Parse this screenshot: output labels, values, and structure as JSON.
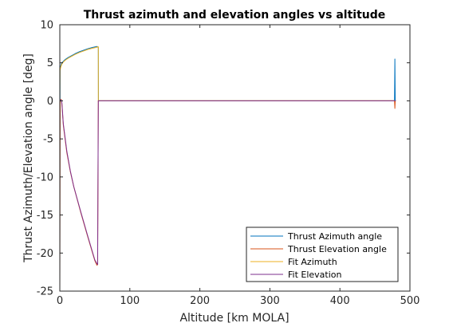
{
  "chart_data": {
    "type": "line",
    "title": "Thrust azimuth and elevation angles vs altitude",
    "xlabel": "Altitude [km MOLA]",
    "ylabel": "Thrust Azimuth/Elevation angle [deg]",
    "xlim": [
      0,
      500
    ],
    "ylim": [
      -25,
      10
    ],
    "xticks": [
      0,
      100,
      200,
      300,
      400,
      500
    ],
    "yticks": [
      -25,
      -20,
      -15,
      -10,
      -5,
      0,
      5,
      10
    ],
    "grid": false,
    "legend_position": "bottom-right",
    "series": [
      {
        "name": "Thrust Azimuth angle",
        "color": "#0072BD",
        "x": [
          0,
          0.3,
          1,
          2,
          3,
          5,
          8,
          12,
          17,
          22,
          28,
          34,
          40,
          46,
          51,
          53,
          54,
          55,
          55.2,
          100,
          200,
          300,
          400,
          478,
          478.5,
          479,
          479.5
        ],
        "y": [
          -25,
          4.2,
          4.5,
          4.8,
          5.0,
          5.2,
          5.45,
          5.7,
          5.95,
          6.2,
          6.45,
          6.65,
          6.85,
          7.0,
          7.1,
          7.15,
          7.1,
          7.0,
          0,
          0,
          0,
          0,
          0,
          0,
          5.5,
          0,
          0
        ]
      },
      {
        "name": "Thrust Elevation angle",
        "color": "#D95319",
        "x": [
          0,
          0.5,
          1,
          2,
          3,
          5,
          10,
          15,
          20,
          30,
          40,
          50,
          53,
          54,
          55,
          55.2,
          100,
          200,
          300,
          400,
          478,
          478.5,
          479
        ],
        "y": [
          -25,
          0.1,
          0.1,
          0.2,
          -0.5,
          -3.2,
          -6.8,
          -9.3,
          -11.3,
          -14.7,
          -17.9,
          -21.0,
          -21.6,
          -21.5,
          0,
          0,
          0,
          0,
          0,
          0,
          0,
          -1.0,
          0
        ]
      },
      {
        "name": "Fit Azimuth",
        "color": "#EDB120",
        "x": [
          0,
          0.3,
          1,
          2,
          3,
          5,
          8,
          12,
          17,
          22,
          28,
          34,
          40,
          46,
          51,
          53,
          54,
          55,
          55,
          100,
          200,
          300,
          400,
          480
        ],
        "y": [
          0,
          4.0,
          4.3,
          4.6,
          4.85,
          5.1,
          5.35,
          5.6,
          5.85,
          6.1,
          6.35,
          6.55,
          6.75,
          6.9,
          7.0,
          7.05,
          7.1,
          7.1,
          0,
          0,
          0,
          0,
          0,
          0
        ]
      },
      {
        "name": "Fit Elevation",
        "color": "#7E2F8E",
        "x": [
          0,
          1,
          2,
          3,
          5,
          10,
          15,
          20,
          30,
          40,
          50,
          53,
          54,
          55,
          100,
          200,
          300,
          400,
          480
        ],
        "y": [
          0,
          0.1,
          0.1,
          -0.3,
          -3.0,
          -6.6,
          -9.2,
          -11.3,
          -14.6,
          -17.8,
          -20.9,
          -21.4,
          -21.5,
          0,
          0,
          0,
          0,
          0,
          0
        ]
      }
    ]
  }
}
